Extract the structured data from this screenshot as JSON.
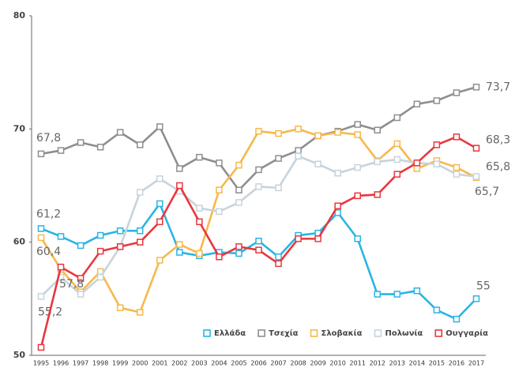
{
  "chart_data": {
    "type": "line",
    "categories": [
      "1995",
      "1996",
      "1997",
      "1998",
      "1999",
      "2000",
      "2001",
      "2002",
      "2003",
      "2004",
      "2005",
      "2006",
      "2007",
      "2008",
      "2009",
      "2010",
      "2011",
      "2012",
      "2013",
      "2014",
      "2015",
      "2016",
      "2017"
    ],
    "ylim": [
      50,
      80
    ],
    "yticks": [
      50,
      60,
      70,
      80
    ],
    "grid": false,
    "legend": "bottom-right",
    "series": [
      {
        "name": "Ελλάδα",
        "color": "#2ab4e6",
        "values": [
          61.2,
          60.5,
          59.7,
          60.6,
          61.0,
          61.0,
          63.4,
          59.1,
          58.8,
          59.1,
          59.0,
          60.1,
          58.7,
          60.6,
          60.8,
          62.6,
          60.3,
          55.4,
          55.4,
          55.7,
          54.0,
          53.2,
          55
        ],
        "value_labels": [
          "61,2",
          null,
          null,
          null,
          null,
          null,
          null,
          null,
          null,
          null,
          null,
          null,
          null,
          null,
          null,
          null,
          null,
          null,
          null,
          null,
          null,
          null,
          "55"
        ]
      },
      {
        "name": "Τσεχία",
        "color": "#8e8e8e",
        "values": [
          67.8,
          68.1,
          68.8,
          68.4,
          69.7,
          68.6,
          70.2,
          66.5,
          67.5,
          67.0,
          64.6,
          66.4,
          67.4,
          68.1,
          69.4,
          69.8,
          70.4,
          69.9,
          71.0,
          72.2,
          72.5,
          73.2,
          73.7
        ],
        "value_labels": [
          "67,8",
          null,
          null,
          null,
          null,
          null,
          null,
          null,
          null,
          null,
          null,
          null,
          null,
          null,
          null,
          null,
          null,
          null,
          null,
          null,
          null,
          null,
          "73,7"
        ]
      },
      {
        "name": "Σλοβακία",
        "color": "#f7b84b",
        "values": [
          60.4,
          57.6,
          55.6,
          57.4,
          54.2,
          53.8,
          58.4,
          59.8,
          59.0,
          64.6,
          66.8,
          69.8,
          69.6,
          70.0,
          69.4,
          69.7,
          69.5,
          67.2,
          68.7,
          66.5,
          67.2,
          66.6,
          65.7
        ],
        "value_labels": [
          "60,4",
          null,
          null,
          null,
          null,
          null,
          null,
          null,
          null,
          null,
          null,
          null,
          null,
          null,
          null,
          null,
          null,
          null,
          null,
          null,
          null,
          null,
          "65,7"
        ]
      },
      {
        "name": "Πολωνία",
        "color": "#c6d4dd",
        "values": [
          55.2,
          56.9,
          55.4,
          56.9,
          59.6,
          64.4,
          65.6,
          64.5,
          63.0,
          62.7,
          63.5,
          64.9,
          64.8,
          67.6,
          66.9,
          66.1,
          66.6,
          67.1,
          67.3,
          67.0,
          66.9,
          66.0,
          65.8
        ],
        "value_labels": [
          "55,2",
          null,
          null,
          null,
          null,
          null,
          null,
          null,
          null,
          null,
          null,
          null,
          null,
          null,
          null,
          null,
          null,
          null,
          null,
          null,
          null,
          null,
          "65,8"
        ]
      },
      {
        "name": "Ουγγαρία",
        "color": "#e8373f",
        "values": [
          50.7,
          57.8,
          56.8,
          59.2,
          59.6,
          60.0,
          61.8,
          65.0,
          61.8,
          58.7,
          59.6,
          59.3,
          58.1,
          60.3,
          60.3,
          63.2,
          64.1,
          64.2,
          66.0,
          67.0,
          68.6,
          69.3,
          68.3
        ],
        "value_labels": [
          null,
          "57,8",
          null,
          null,
          null,
          null,
          null,
          null,
          null,
          null,
          null,
          null,
          null,
          null,
          null,
          null,
          null,
          null,
          null,
          null,
          null,
          null,
          "68,3"
        ]
      }
    ]
  }
}
